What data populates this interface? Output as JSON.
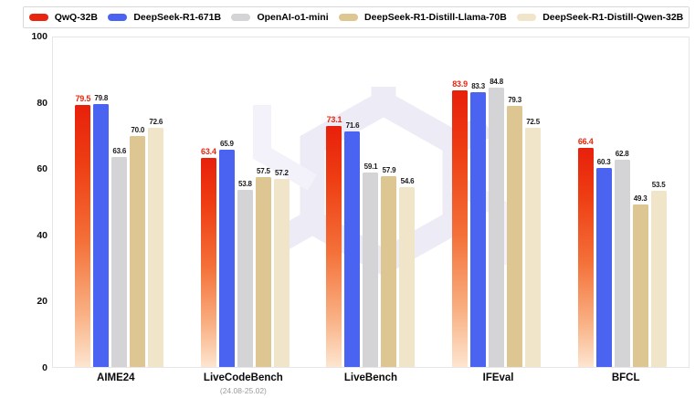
{
  "legend": {
    "items": [
      {
        "label": "QwQ-32B",
        "color": "#e8250e"
      },
      {
        "label": "DeepSeek-R1-671B",
        "color": "#4a63f0"
      },
      {
        "label": "OpenAI-o1-mini",
        "color": "#d4d4d7"
      },
      {
        "label": "DeepSeek-R1-Distill-Llama-70B",
        "color": "#dec692"
      },
      {
        "label": "DeepSeek-R1-Distill-Qwen-32B",
        "color": "#f1e5c9"
      }
    ]
  },
  "chart_data": {
    "type": "bar",
    "categories": [
      "AIME24",
      "LiveCodeBench",
      "LiveBench",
      "IFEval",
      "BFCL"
    ],
    "category_sublabels": [
      "",
      "(24.08-25.02)",
      "",
      "",
      ""
    ],
    "series": [
      {
        "name": "QwQ-32B",
        "color": "#e8250e",
        "gradient": true,
        "highlight": true,
        "values": [
          79.5,
          63.4,
          73.1,
          83.9,
          66.4
        ]
      },
      {
        "name": "DeepSeek-R1-671B",
        "color": "#4a63f0",
        "values": [
          79.8,
          65.9,
          71.6,
          83.3,
          60.3
        ]
      },
      {
        "name": "OpenAI-o1-mini",
        "color": "#d4d4d7",
        "values": [
          63.6,
          53.8,
          59.1,
          84.8,
          62.8
        ]
      },
      {
        "name": "DeepSeek-R1-Distill-Llama-70B",
        "color": "#dec692",
        "values": [
          70.0,
          57.5,
          57.9,
          79.3,
          49.3
        ]
      },
      {
        "name": "DeepSeek-R1-Distill-Qwen-32B",
        "color": "#f1e5c9",
        "values": [
          72.6,
          57.2,
          54.6,
          72.5,
          53.5
        ]
      }
    ],
    "ylim": [
      0,
      100
    ],
    "yticks": [
      0,
      20,
      40,
      60,
      80,
      100
    ],
    "value_label_decimals": 1,
    "legend_position": "top",
    "grid": false,
    "highlight_color": "#e8250e",
    "watermark_color": "#ecebf6"
  }
}
